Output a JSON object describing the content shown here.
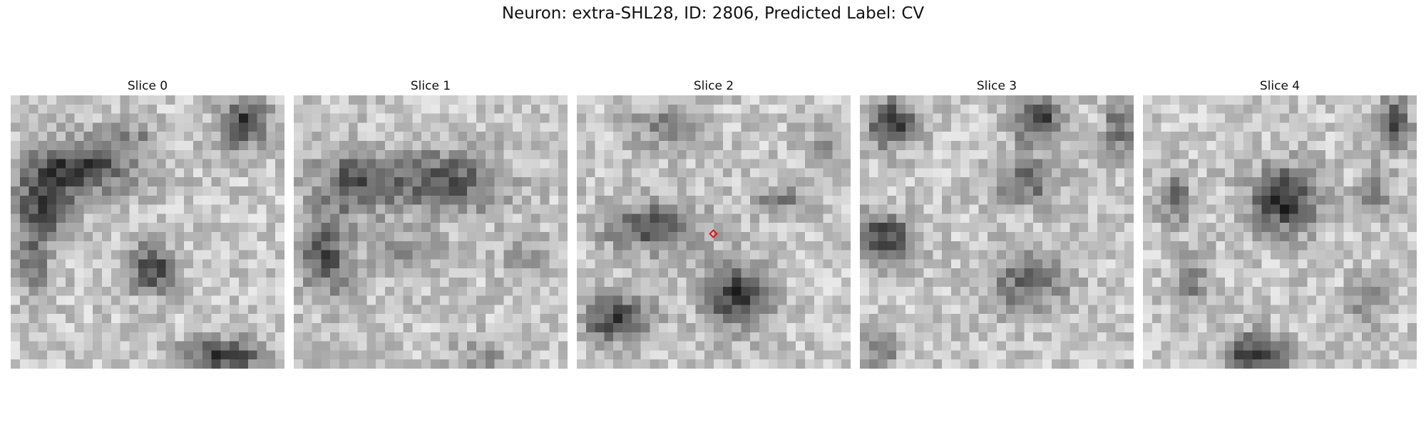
{
  "figure": {
    "title": "Neuron: extra-SHL28, ID: 2806, Predicted Label: CV"
  },
  "panels": [
    {
      "title": "Slice 0"
    },
    {
      "title": "Slice 1"
    },
    {
      "title": "Slice 2"
    },
    {
      "title": "Slice 3"
    },
    {
      "title": "Slice 4"
    }
  ],
  "marker_color": "#e8141b"
}
